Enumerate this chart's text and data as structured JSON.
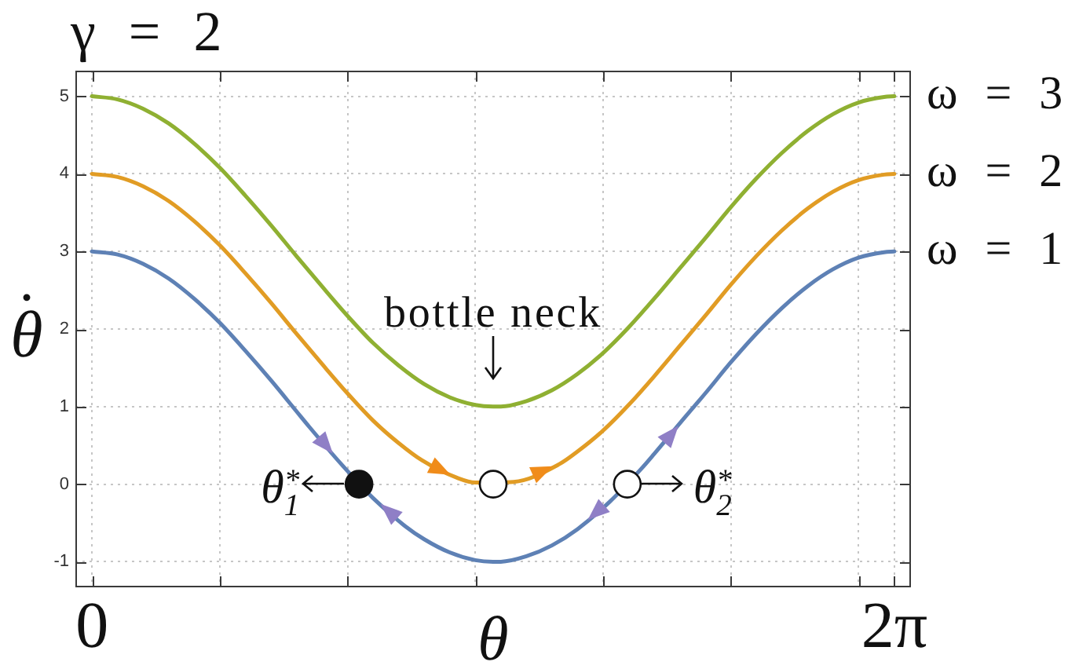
{
  "chart_data": {
    "type": "line",
    "title": "γ = 2",
    "xlabel": "θ",
    "ylabel": "θ̇",
    "x": [
      0,
      0.2,
      0.4,
      0.6,
      0.8,
      1,
      1.2,
      1.4,
      1.6,
      1.8,
      2,
      2.2,
      2.4,
      2.6,
      2.8,
      3,
      3.14,
      3.2,
      3.4,
      3.6,
      3.8,
      4,
      4.2,
      4.4,
      4.6,
      4.8,
      5,
      5.2,
      5.4,
      5.6,
      5.8,
      6,
      6.2,
      6.28
    ],
    "series": [
      {
        "name": "ω = 3",
        "color": "#8fb032",
        "values": [
          5,
          4.96,
          4.84,
          4.65,
          4.39,
          4.08,
          3.72,
          3.34,
          2.94,
          2.55,
          2.17,
          1.82,
          1.53,
          1.29,
          1.12,
          1.02,
          1,
          1,
          1.07,
          1.21,
          1.42,
          1.69,
          2.02,
          2.39,
          2.78,
          3.17,
          3.57,
          3.94,
          4.27,
          4.55,
          4.77,
          4.92,
          4.99,
          5
        ]
      },
      {
        "name": "ω = 2",
        "color": "#e19c24",
        "x": [
          0,
          0.2,
          0.4,
          0.6,
          0.8,
          1,
          1.2,
          1.4,
          1.6,
          1.8,
          2,
          2.2,
          2.4,
          2.58,
          2.86,
          3,
          3.3,
          3.66,
          3.8,
          4,
          4.2,
          4.4,
          4.6,
          4.8,
          5,
          5.2,
          5.4,
          5.6,
          5.8,
          6,
          6.2,
          6.28
        ],
        "values": [
          4,
          3.96,
          3.84,
          3.65,
          3.39,
          3.08,
          2.72,
          2.34,
          1.94,
          1.55,
          1.17,
          0.82,
          0.53,
          0.31,
          0.08,
          0.02,
          0.03,
          0.26,
          0.42,
          0.69,
          1.02,
          1.39,
          1.78,
          2.17,
          2.57,
          2.94,
          3.27,
          3.55,
          3.77,
          3.92,
          3.99,
          4
        ]
      },
      {
        "name": "ω = 1",
        "color": "#5e81b5",
        "x": [
          0,
          0.2,
          0.4,
          0.6,
          0.8,
          1,
          1.2,
          1.4,
          1.6,
          1.7,
          1.95,
          2.2,
          2.45,
          2.6,
          2.8,
          3,
          3.14,
          3.2,
          3.4,
          3.6,
          3.8,
          4.05,
          4.3,
          4.4,
          4.65,
          4.8,
          5,
          5.2,
          5.4,
          5.6,
          5.8,
          6,
          6.2,
          6.28
        ],
        "values": [
          3,
          2.96,
          2.84,
          2.65,
          2.39,
          2.08,
          1.72,
          1.34,
          0.94,
          0.74,
          0.26,
          -0.18,
          -0.54,
          -0.71,
          -0.88,
          -0.98,
          -1,
          -1,
          -0.93,
          -0.79,
          -0.58,
          -0.23,
          0.2,
          0.39,
          0.88,
          1.17,
          1.57,
          1.94,
          2.27,
          2.55,
          2.77,
          2.92,
          2.99,
          3
        ]
      },
      {
        "type": "scatter",
        "marker": "circle",
        "color": "#111111",
        "x": [
          2.09
        ],
        "values": [
          0
        ]
      },
      {
        "type": "scatter",
        "marker": "circle",
        "color": "#ffffff",
        "x": [
          3.14,
          4.19
        ],
        "values": [
          0,
          0
        ]
      }
    ],
    "xlim": [
      -0.13,
      6.41
    ],
    "ylim": [
      -1.33,
      5.33
    ],
    "xticks": [
      {
        "value": 0,
        "label": "0"
      },
      {
        "value": 1,
        "label": null
      },
      {
        "value": 2,
        "label": null
      },
      {
        "value": 3,
        "label": null
      },
      {
        "value": 4,
        "label": null
      },
      {
        "value": 5,
        "label": null
      },
      {
        "value": 6,
        "label": null
      },
      {
        "value": 6.28,
        "label": "2π"
      }
    ],
    "yticks": [
      -1,
      0,
      1,
      2,
      3,
      4,
      5
    ],
    "grid": true,
    "marker": "none",
    "annotations": [
      {
        "text": "bottle neck",
        "x": 3.14,
        "y": 1
      },
      {
        "text": "θ$_{1}$$^{*}$",
        "x": 2.09,
        "y": 0
      },
      {
        "text": "θ$_{2}$$^{*}$",
        "x": 4.19,
        "y": 0
      }
    ]
  }
}
